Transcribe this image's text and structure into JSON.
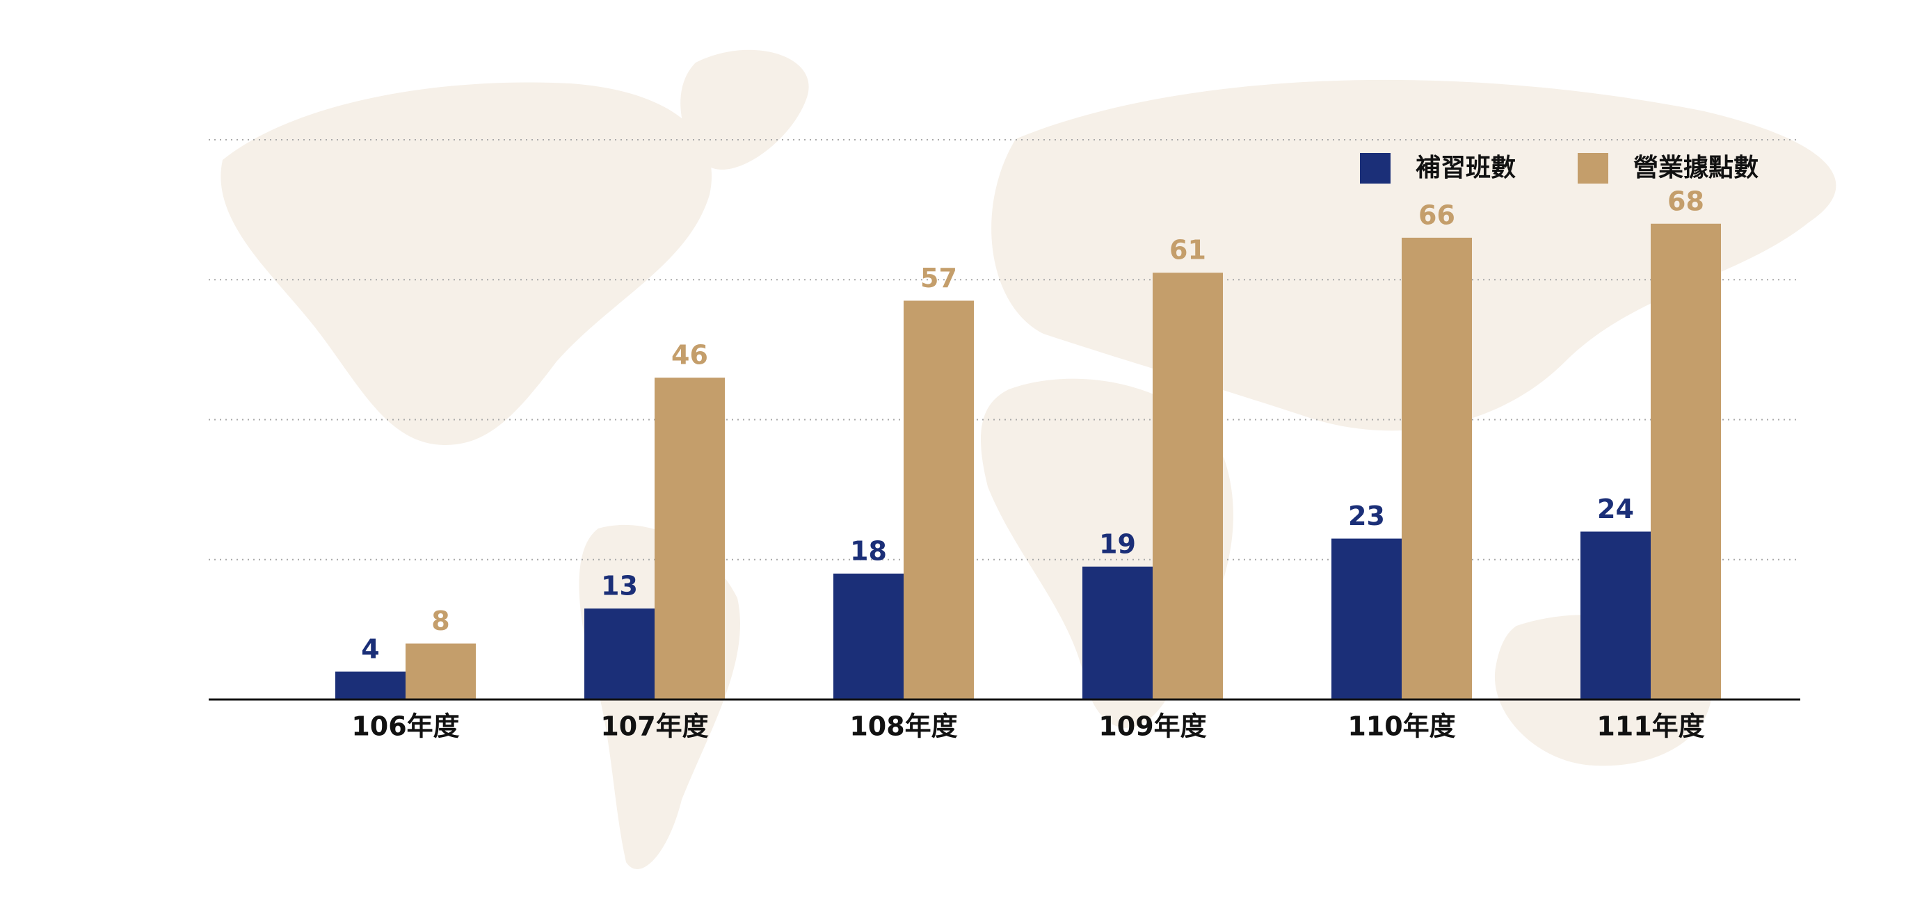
{
  "chart_data": {
    "type": "bar",
    "categories": [
      "106年度",
      "107年度",
      "108年度",
      "109年度",
      "110年度",
      "111年度"
    ],
    "series": [
      {
        "name": "補習班數",
        "color": "#1b2f78",
        "values": [
          4,
          13,
          18,
          19,
          23,
          24
        ]
      },
      {
        "name": "營業據點數",
        "color": "#c49e6b",
        "values": [
          8,
          46,
          57,
          61,
          66,
          68
        ]
      }
    ],
    "ylim": [
      0,
      80
    ],
    "yticks": [
      0,
      20,
      40,
      60,
      80
    ],
    "grid": true,
    "legend": "top-right"
  }
}
